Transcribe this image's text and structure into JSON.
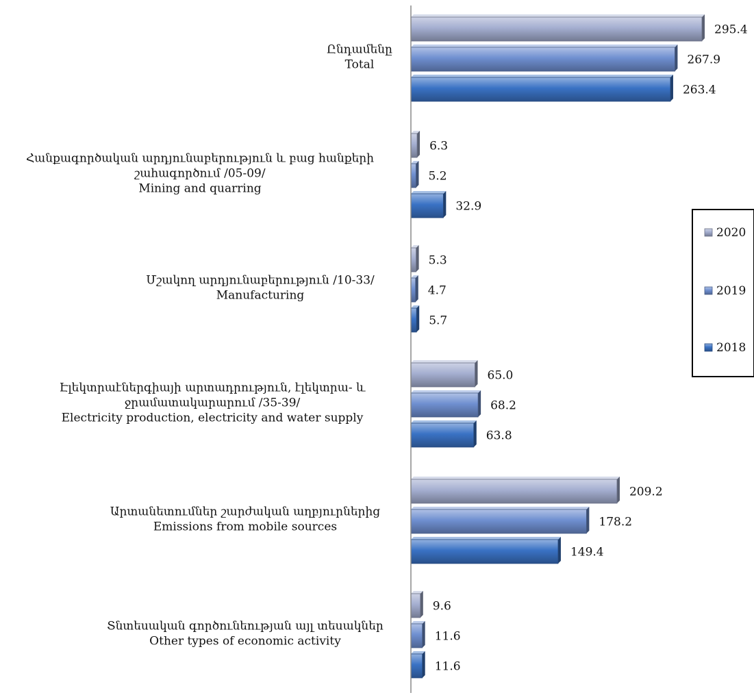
{
  "chart_data": {
    "type": "bar",
    "orientation": "horizontal",
    "categories": [
      [
        "Ընդամենը",
        "Total"
      ],
      [
        "Հանքագործական արդյունաբերություն և բաց հանքերի",
        "շահագործում /05-09/",
        "Mining and quarring"
      ],
      [
        "Մշակող արդյունաբերություն /10-33/",
        "Manufacturing"
      ],
      [
        "Էլեկտրաէներգիայի արտադրություն, էլեկտրա- և",
        "ջրամատակարարում /35-39/",
        "Electricity production, electricity and water supply"
      ],
      [
        "Արտանետումներ շարժական աղբյուրներից",
        "Emissions from mobile sources"
      ],
      [
        "Տնտեսական գործունեության այլ տեսակներ",
        "Other types of economic activity"
      ]
    ],
    "series": [
      {
        "name": "2020",
        "color": "#a4aed0",
        "values": [
          295.4,
          6.3,
          5.3,
          65.0,
          209.2,
          9.6
        ]
      },
      {
        "name": "2019",
        "color": "#6f8fd0",
        "values": [
          267.9,
          5.2,
          4.7,
          68.2,
          178.2,
          11.6
        ]
      },
      {
        "name": "2018",
        "color": "#3a72c4",
        "values": [
          263.4,
          32.9,
          5.7,
          63.8,
          149.4,
          11.6
        ]
      }
    ],
    "value_labels": [
      [
        "295.4",
        "6.3",
        "5.3",
        "65.0",
        "209.2",
        "9.6"
      ],
      [
        "267.9",
        "5.2",
        "4.7",
        "68.2",
        "178.2",
        "11.6"
      ],
      [
        "263.4",
        "32.9",
        "5.7",
        "63.8",
        "149.4",
        "11.6"
      ]
    ],
    "xlim": [
      0,
      300
    ],
    "legend": {
      "placement": "right",
      "order": [
        "2020",
        "2019",
        "2018"
      ]
    },
    "grid": false,
    "title": "",
    "xlabel": "",
    "ylabel": ""
  }
}
